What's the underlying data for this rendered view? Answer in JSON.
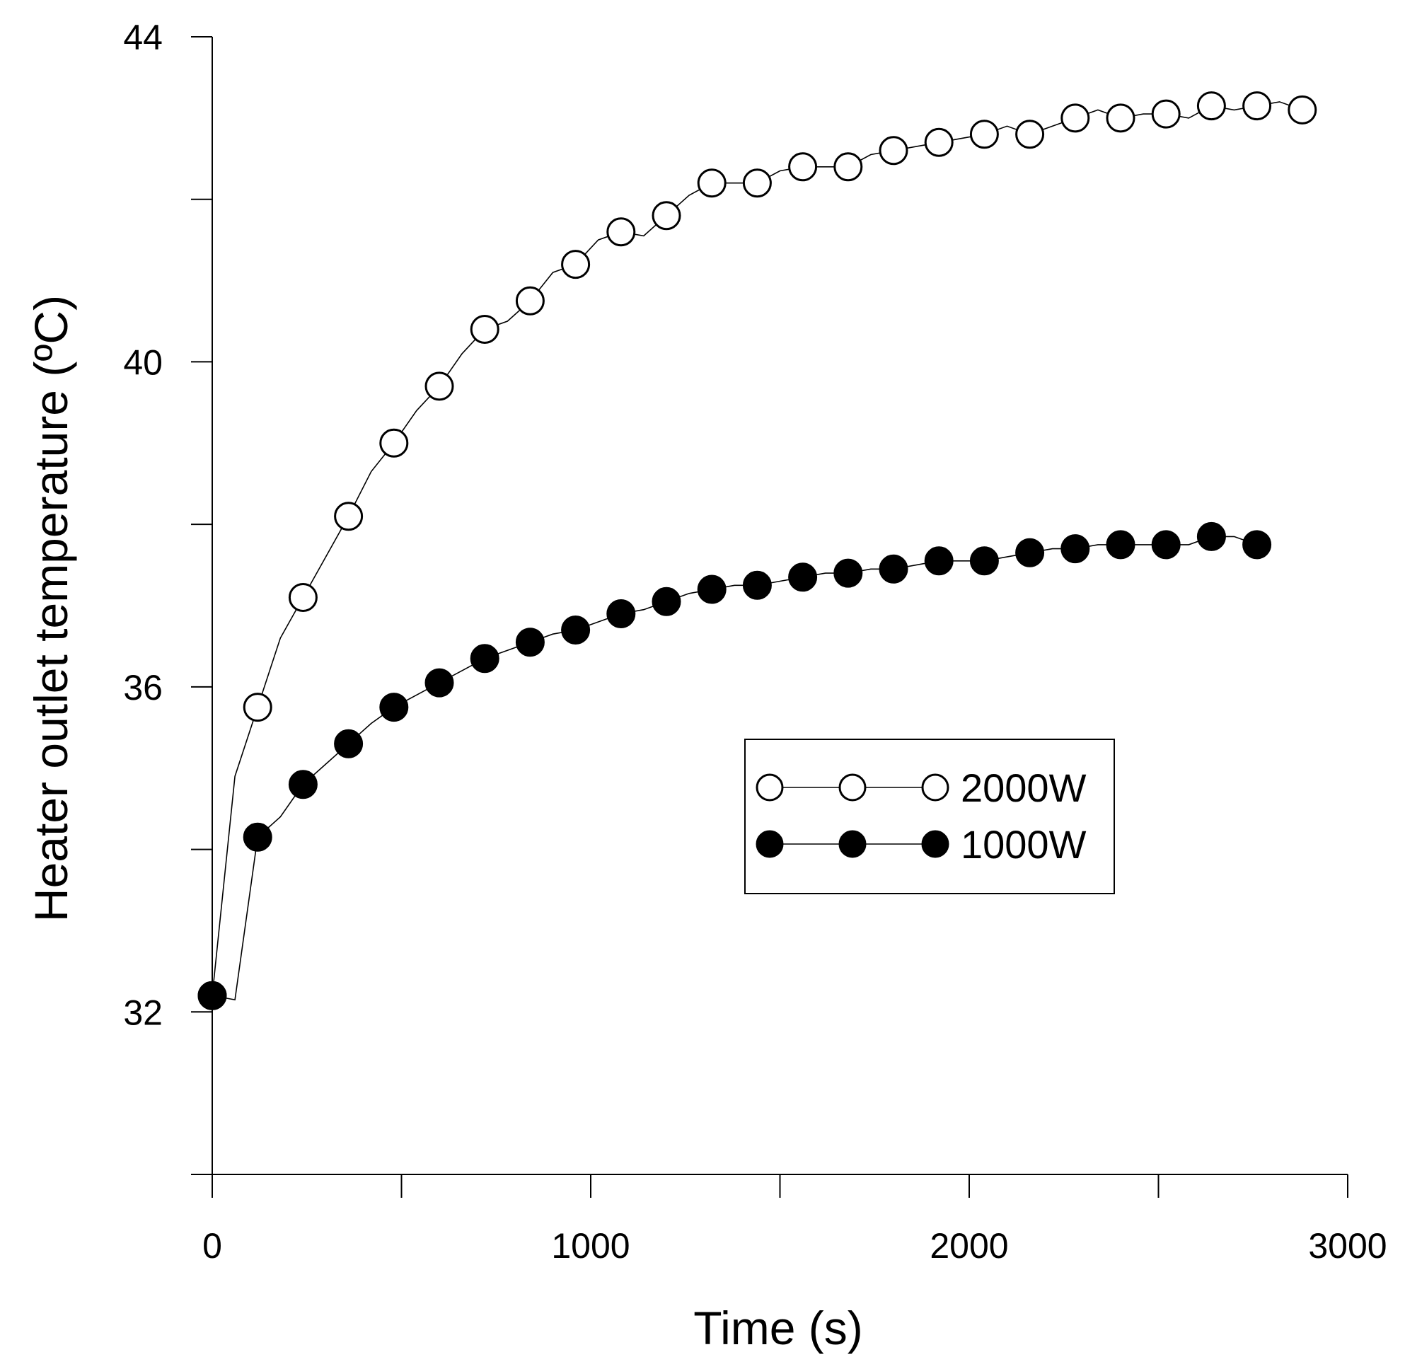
{
  "chart_data": {
    "type": "line",
    "title": "",
    "xlabel": "Time (s)",
    "ylabel": "Heater outlet temperature (ºC)",
    "xlim": [
      0,
      3000
    ],
    "ylim": [
      30,
      44
    ],
    "x_ticks": [
      0,
      500,
      1000,
      1500,
      2000,
      2500,
      3000
    ],
    "x_tick_labels": [
      "0",
      "",
      "1000",
      "",
      "2000",
      "",
      "3000"
    ],
    "y_ticks": [
      30,
      32,
      34,
      36,
      38,
      40,
      42,
      44
    ],
    "y_tick_labels": [
      "",
      "32",
      "",
      "36",
      "",
      "40",
      "",
      "44"
    ],
    "grid": false,
    "legend_position": "center-right",
    "series": [
      {
        "name": "2000W",
        "marker": "open-circle",
        "color": "#000000",
        "points": [
          [
            0,
            32.2
          ],
          [
            120,
            35.75
          ],
          [
            240,
            37.1
          ],
          [
            360,
            38.1
          ],
          [
            480,
            39.0
          ],
          [
            600,
            39.7
          ],
          [
            720,
            40.4
          ],
          [
            840,
            40.75
          ],
          [
            960,
            41.2
          ],
          [
            1080,
            41.6
          ],
          [
            1200,
            41.8
          ],
          [
            1320,
            42.2
          ],
          [
            1440,
            42.2
          ],
          [
            1560,
            42.4
          ],
          [
            1680,
            42.4
          ],
          [
            1800,
            42.6
          ],
          [
            1920,
            42.7
          ],
          [
            2040,
            42.8
          ],
          [
            2160,
            42.8
          ],
          [
            2280,
            43.0
          ],
          [
            2400,
            43.0
          ],
          [
            2520,
            43.05
          ],
          [
            2640,
            43.15
          ],
          [
            2760,
            43.15
          ],
          [
            2880,
            43.1
          ]
        ],
        "line": [
          [
            0,
            32.2
          ],
          [
            60,
            34.9
          ],
          [
            120,
            35.75
          ],
          [
            180,
            36.6
          ],
          [
            240,
            37.1
          ],
          [
            300,
            37.6
          ],
          [
            360,
            38.1
          ],
          [
            420,
            38.65
          ],
          [
            480,
            39.0
          ],
          [
            540,
            39.4
          ],
          [
            600,
            39.7
          ],
          [
            660,
            40.1
          ],
          [
            720,
            40.4
          ],
          [
            780,
            40.5
          ],
          [
            840,
            40.75
          ],
          [
            900,
            41.1
          ],
          [
            960,
            41.2
          ],
          [
            1020,
            41.5
          ],
          [
            1080,
            41.6
          ],
          [
            1140,
            41.55
          ],
          [
            1200,
            41.8
          ],
          [
            1260,
            42.05
          ],
          [
            1320,
            42.2
          ],
          [
            1380,
            42.2
          ],
          [
            1440,
            42.2
          ],
          [
            1500,
            42.35
          ],
          [
            1560,
            42.4
          ],
          [
            1620,
            42.4
          ],
          [
            1680,
            42.4
          ],
          [
            1740,
            42.55
          ],
          [
            1800,
            42.6
          ],
          [
            1860,
            42.65
          ],
          [
            1920,
            42.7
          ],
          [
            1980,
            42.75
          ],
          [
            2040,
            42.8
          ],
          [
            2100,
            42.9
          ],
          [
            2160,
            42.8
          ],
          [
            2220,
            42.9
          ],
          [
            2280,
            43.0
          ],
          [
            2340,
            43.1
          ],
          [
            2400,
            43.0
          ],
          [
            2460,
            43.05
          ],
          [
            2520,
            43.05
          ],
          [
            2580,
            43.0
          ],
          [
            2640,
            43.15
          ],
          [
            2700,
            43.1
          ],
          [
            2760,
            43.15
          ],
          [
            2820,
            43.2
          ],
          [
            2880,
            43.1
          ]
        ]
      },
      {
        "name": "1000W",
        "marker": "filled-circle",
        "color": "#000000",
        "points": [
          [
            0,
            32.2
          ],
          [
            120,
            34.15
          ],
          [
            240,
            34.8
          ],
          [
            360,
            35.3
          ],
          [
            480,
            35.75
          ],
          [
            600,
            36.05
          ],
          [
            720,
            36.35
          ],
          [
            840,
            36.55
          ],
          [
            960,
            36.7
          ],
          [
            1080,
            36.9
          ],
          [
            1200,
            37.05
          ],
          [
            1320,
            37.2
          ],
          [
            1440,
            37.25
          ],
          [
            1560,
            37.35
          ],
          [
            1680,
            37.4
          ],
          [
            1800,
            37.45
          ],
          [
            1920,
            37.55
          ],
          [
            2040,
            37.55
          ],
          [
            2160,
            37.65
          ],
          [
            2280,
            37.7
          ],
          [
            2400,
            37.75
          ],
          [
            2520,
            37.75
          ],
          [
            2640,
            37.85
          ],
          [
            2760,
            37.75
          ]
        ],
        "line": [
          [
            0,
            32.2
          ],
          [
            60,
            32.15
          ],
          [
            120,
            34.15
          ],
          [
            180,
            34.4
          ],
          [
            240,
            34.8
          ],
          [
            300,
            35.05
          ],
          [
            360,
            35.3
          ],
          [
            420,
            35.55
          ],
          [
            480,
            35.75
          ],
          [
            540,
            35.9
          ],
          [
            600,
            36.05
          ],
          [
            660,
            36.2
          ],
          [
            720,
            36.35
          ],
          [
            780,
            36.45
          ],
          [
            840,
            36.55
          ],
          [
            900,
            36.65
          ],
          [
            960,
            36.7
          ],
          [
            1020,
            36.8
          ],
          [
            1080,
            36.9
          ],
          [
            1140,
            36.95
          ],
          [
            1200,
            37.05
          ],
          [
            1260,
            37.15
          ],
          [
            1320,
            37.2
          ],
          [
            1380,
            37.25
          ],
          [
            1440,
            37.25
          ],
          [
            1500,
            37.3
          ],
          [
            1560,
            37.35
          ],
          [
            1620,
            37.4
          ],
          [
            1680,
            37.4
          ],
          [
            1740,
            37.45
          ],
          [
            1800,
            37.45
          ],
          [
            1860,
            37.5
          ],
          [
            1920,
            37.55
          ],
          [
            1980,
            37.55
          ],
          [
            2040,
            37.55
          ],
          [
            2100,
            37.6
          ],
          [
            2160,
            37.65
          ],
          [
            2220,
            37.7
          ],
          [
            2280,
            37.7
          ],
          [
            2340,
            37.75
          ],
          [
            2400,
            37.75
          ],
          [
            2460,
            37.75
          ],
          [
            2520,
            37.75
          ],
          [
            2580,
            37.75
          ],
          [
            2640,
            37.85
          ],
          [
            2700,
            37.85
          ],
          [
            2760,
            37.75
          ]
        ]
      }
    ]
  }
}
